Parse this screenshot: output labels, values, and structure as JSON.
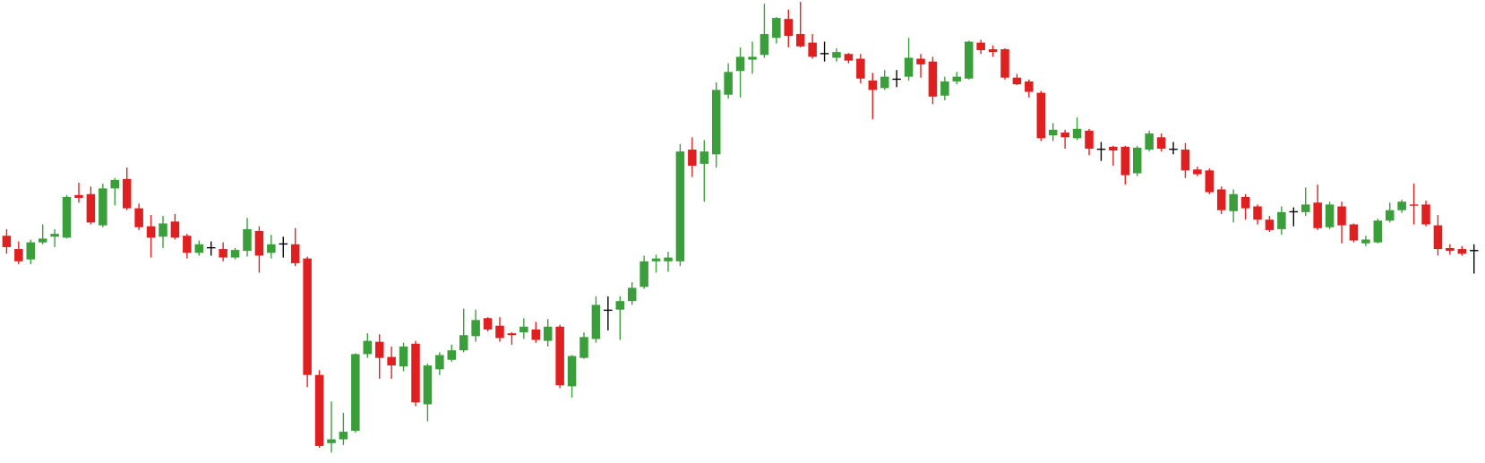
{
  "chart_data": {
    "type": "candlestick",
    "open": [
      240,
      226,
      215,
      233,
      239,
      238,
      283,
      284,
      251,
      290,
      300,
      269,
      250,
      239,
      255,
      240,
      222,
      228,
      226,
      217,
      224,
      245,
      222,
      232,
      231,
      216,
      93,
      21,
      25,
      34,
      115,
      128,
      112,
      102,
      126,
      62,
      99,
      109,
      119,
      134,
      153,
      145,
      137,
      138,
      141,
      129,
      144,
      81,
      111,
      131,
      162,
      162,
      171,
      186,
      213,
      213,
      213,
      331,
      316,
      326,
      389,
      414,
      426,
      431,
      449,
      469,
      453,
      444,
      433,
      428,
      432,
      427,
      404,
      396,
      406,
      408,
      427,
      424,
      388,
      403,
      406,
      444,
      437,
      437,
      407,
      403,
      391,
      346,
      349,
      343,
      351,
      332,
      334,
      334,
      306,
      331,
      344,
      332,
      331,
      310,
      309,
      289,
      266,
      281,
      271,
      257,
      247,
      266,
      265,
      275,
      249,
      271,
      252,
      232,
      233,
      256,
      267,
      273,
      273,
      251,
      227,
      226,
      225
    ],
    "high": [
      247,
      234,
      236,
      252,
      247,
      283,
      296,
      292,
      295,
      301,
      312,
      274,
      262,
      261,
      263,
      242,
      235,
      234,
      233,
      227,
      259,
      250,
      241,
      239,
      248,
      218,
      98,
      65,
      53,
      116,
      137,
      136,
      123,
      127,
      129,
      105,
      117,
      125,
      163,
      162,
      154,
      154,
      138,
      153,
      149,
      152,
      146,
      114,
      138,
      176,
      176,
      176,
      191,
      219,
      220,
      223,
      337,
      344,
      341,
      402,
      422,
      439,
      445,
      485,
      471,
      479,
      487,
      453,
      445,
      438,
      433,
      432,
      412,
      415,
      415,
      449,
      432,
      429,
      408,
      413,
      446,
      447,
      441,
      438,
      411,
      405,
      393,
      359,
      352,
      365,
      353,
      339,
      335,
      335,
      335,
      351,
      348,
      339,
      338,
      313,
      311,
      292,
      289,
      284,
      273,
      261,
      271,
      270,
      291,
      294,
      276,
      276,
      253,
      240,
      258,
      275,
      278,
      295,
      277,
      262,
      231,
      229,
      231
    ],
    "low": [
      221,
      210,
      210,
      231,
      228,
      237,
      275,
      252,
      249,
      272,
      267,
      246,
      217,
      227,
      236,
      216,
      219,
      219,
      213,
      215,
      218,
      201,
      216,
      217,
      208,
      80,
      16,
      11,
      19,
      32,
      111,
      89,
      89,
      97,
      60,
      44,
      93,
      107,
      117,
      128,
      139,
      128,
      125,
      131,
      127,
      123,
      79,
      69,
      110,
      127,
      140,
      130,
      167,
      184,
      201,
      202,
      208,
      302,
      276,
      312,
      385,
      386,
      411,
      428,
      443,
      439,
      439,
      427,
      424,
      424,
      422,
      401,
      363,
      394,
      397,
      404,
      407,
      379,
      383,
      400,
      405,
      432,
      429,
      405,
      399,
      386,
      340,
      340,
      332,
      341,
      325,
      319,
      314,
      294,
      303,
      329,
      329,
      326,
      301,
      303,
      284,
      263,
      254,
      257,
      252,
      244,
      241,
      250,
      261,
      246,
      247,
      232,
      233,
      229,
      232,
      254,
      264,
      252,
      250,
      219,
      220,
      219,
      200
    ],
    "close": [
      228,
      213,
      233,
      237,
      242,
      281,
      280,
      254,
      290,
      299,
      269,
      249,
      238,
      253,
      238,
      222,
      231,
      228,
      217,
      225,
      247,
      219,
      231,
      232,
      211,
      93,
      18,
      25,
      33,
      115,
      129,
      111,
      103,
      123,
      64,
      103,
      114,
      119,
      135,
      151,
      141,
      132,
      135,
      144,
      130,
      144,
      82,
      113,
      133,
      167,
      162,
      171,
      185,
      213,
      216,
      217,
      329,
      314,
      329,
      394,
      413,
      429,
      429,
      453,
      470,
      451,
      440,
      429,
      433,
      434,
      425,
      406,
      394,
      408,
      406,
      428,
      421,
      387,
      403,
      408,
      445,
      436,
      434,
      407,
      400,
      392,
      343,
      352,
      344,
      353,
      332,
      332,
      330,
      304,
      333,
      348,
      332,
      332,
      309,
      305,
      286,
      267,
      284,
      269,
      257,
      246,
      265,
      266,
      273,
      248,
      273,
      251,
      235,
      236,
      256,
      267,
      276,
      272,
      252,
      226,
      224,
      221,
      225
    ],
    "ylim": [
      0,
      489
    ],
    "up_color": "#3a9e3a",
    "down_color": "#e02020",
    "flat_color": "#000000"
  }
}
